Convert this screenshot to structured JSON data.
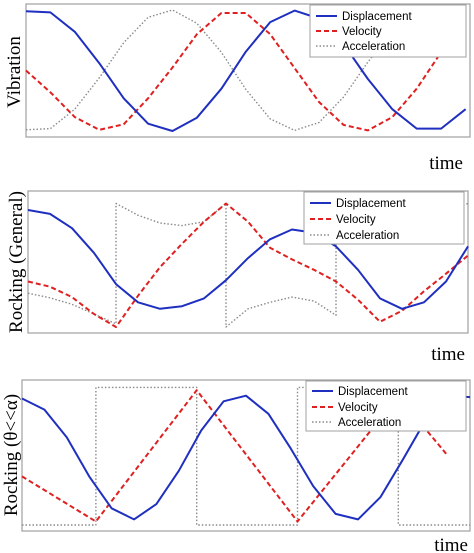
{
  "colors": {
    "displacement": "#1f2fbf",
    "velocity": "#e02020",
    "acceleration": "#8a8a8a"
  },
  "chart_data": [
    {
      "type": "line",
      "title": "",
      "ylabel": "Vibration",
      "xlabel": "time",
      "xlim": [
        0,
        1
      ],
      "ylim": [
        -1,
        1
      ],
      "grid": false,
      "legend_position": "top-right",
      "series": [
        {
          "name": "Displacement",
          "style": "solid",
          "x": [
            0,
            0.055,
            0.11,
            0.165,
            0.22,
            0.275,
            0.33,
            0.385,
            0.44,
            0.495,
            0.55,
            0.605,
            0.66,
            0.715,
            0.77,
            0.825,
            0.88,
            0.935,
            0.99
          ],
          "y": [
            0.98,
            0.96,
            0.64,
            0.12,
            -0.46,
            -0.88,
            -1.0,
            -0.78,
            -0.3,
            0.31,
            0.8,
            0.99,
            0.86,
            0.44,
            -0.14,
            -0.64,
            -0.96,
            -0.96,
            -0.64
          ]
        },
        {
          "name": "Velocity",
          "style": "dashed",
          "x": [
            0,
            0.055,
            0.11,
            0.165,
            0.22,
            0.275,
            0.33,
            0.385,
            0.44,
            0.495,
            0.55,
            0.605,
            0.66,
            0.715,
            0.77,
            0.825,
            0.88,
            0.935,
            0.99
          ],
          "y": [
            0.0,
            -0.36,
            -0.77,
            -0.98,
            -0.89,
            -0.46,
            0.05,
            0.6,
            0.95,
            0.95,
            0.6,
            0.04,
            -0.52,
            -0.9,
            -0.99,
            -0.77,
            -0.3,
            0.3,
            0.77
          ]
        },
        {
          "name": "Acceleration",
          "style": "dotted",
          "x": [
            0,
            0.055,
            0.11,
            0.165,
            0.22,
            0.275,
            0.33,
            0.385,
            0.44,
            0.495,
            0.55,
            0.605,
            0.66,
            0.715,
            0.77,
            0.825,
            0.88,
            0.935,
            0.99
          ],
          "y": [
            -0.98,
            -0.96,
            -0.64,
            -0.12,
            0.46,
            0.88,
            1.0,
            0.78,
            0.3,
            -0.31,
            -0.8,
            -0.99,
            -0.86,
            -0.44,
            0.14,
            0.64,
            0.96,
            0.96,
            0.64
          ]
        }
      ]
    },
    {
      "type": "line",
      "title": "",
      "ylabel": "Rocking (General)",
      "xlabel": "time",
      "xlim": [
        0,
        1
      ],
      "ylim": [
        -1,
        1
      ],
      "grid": false,
      "legend_position": "top-right",
      "series": [
        {
          "name": "Displacement",
          "style": "solid",
          "x": [
            0,
            0.05,
            0.1,
            0.15,
            0.2,
            0.25,
            0.3,
            0.35,
            0.4,
            0.45,
            0.5,
            0.55,
            0.6,
            0.65,
            0.7,
            0.75,
            0.8,
            0.85,
            0.9,
            0.95,
            1.0
          ],
          "y": [
            0.8,
            0.74,
            0.52,
            0.14,
            -0.34,
            -0.62,
            -0.72,
            -0.68,
            -0.56,
            -0.28,
            0.06,
            0.35,
            0.5,
            0.45,
            0.24,
            -0.12,
            -0.56,
            -0.72,
            -0.62,
            -0.3,
            0.24
          ]
        },
        {
          "name": "Velocity",
          "style": "dashed",
          "x": [
            0,
            0.05,
            0.1,
            0.15,
            0.2,
            0.25,
            0.3,
            0.35,
            0.4,
            0.45,
            0.5,
            0.55,
            0.6,
            0.65,
            0.7,
            0.75,
            0.8,
            0.85,
            0.9,
            0.95,
            1.0
          ],
          "y": [
            -0.3,
            -0.38,
            -0.54,
            -0.8,
            -1.0,
            -0.52,
            -0.08,
            0.28,
            0.62,
            0.9,
            0.62,
            0.22,
            0.04,
            -0.12,
            -0.3,
            -0.58,
            -0.92,
            -0.75,
            -0.45,
            -0.18,
            0.1
          ]
        },
        {
          "name": "Acceleration",
          "style": "dotted",
          "x": [
            0,
            0.05,
            0.1,
            0.15,
            0.2,
            0.2,
            0.25,
            0.3,
            0.35,
            0.4,
            0.45,
            0.45,
            0.5,
            0.55,
            0.6,
            0.65,
            0.7,
            0.7,
            0.75,
            0.8,
            0.85,
            0.9,
            0.95,
            1.0
          ],
          "y": [
            -0.48,
            -0.55,
            -0.65,
            -0.8,
            -0.95,
            0.9,
            0.72,
            0.6,
            0.56,
            0.62,
            0.9,
            -1.0,
            -0.72,
            -0.62,
            -0.54,
            -0.6,
            -0.82,
            0.72,
            0.58,
            0.5,
            0.52,
            0.6,
            0.78,
            0.9
          ]
        }
      ]
    },
    {
      "type": "line",
      "title": "",
      "ylabel": "Rocking (θ<<α)",
      "xlabel": "time",
      "xlim": [
        0,
        1
      ],
      "ylim": [
        -1,
        1
      ],
      "grid": false,
      "legend_position": "top-right",
      "series": [
        {
          "name": "Displacement",
          "style": "solid",
          "x": [
            0,
            0.05,
            0.1,
            0.15,
            0.2,
            0.25,
            0.3,
            0.35,
            0.4,
            0.45,
            0.5,
            0.55,
            0.6,
            0.65,
            0.7,
            0.75,
            0.8,
            0.85,
            0.9,
            0.95,
            1.0
          ],
          "y": [
            0.82,
            0.66,
            0.26,
            -0.3,
            -0.76,
            -0.92,
            -0.7,
            -0.22,
            0.36,
            0.78,
            0.86,
            0.6,
            0.1,
            -0.44,
            -0.84,
            -0.92,
            -0.6,
            -0.06,
            0.5,
            0.86,
            0.84
          ]
        },
        {
          "name": "Velocity",
          "style": "dashed",
          "x": [
            0,
            0.165,
            0.39,
            0.615,
            0.84,
            0.95
          ],
          "y": [
            -0.3,
            -0.95,
            0.94,
            -0.95,
            0.85,
            0.0
          ]
        },
        {
          "name": "Acceleration",
          "style": "dotted",
          "x": [
            0,
            0.165,
            0.165,
            0.39,
            0.39,
            0.615,
            0.615,
            0.84,
            0.84,
            1.0
          ],
          "y": [
            -1.0,
            -1.0,
            0.98,
            0.98,
            -1.0,
            -1.0,
            0.98,
            0.98,
            -1.0,
            -1.0
          ]
        }
      ]
    }
  ]
}
